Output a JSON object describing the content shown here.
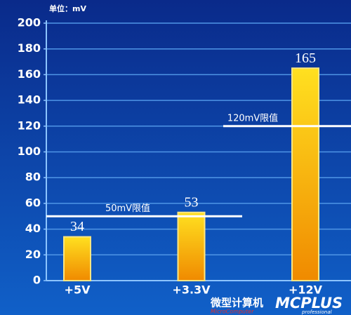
{
  "chart_data": {
    "type": "bar",
    "unit_label": "单位：mV",
    "categories": [
      "+5V",
      "+3.3V",
      "+12V"
    ],
    "values": [
      34,
      53,
      165
    ],
    "ylim": [
      0,
      200
    ],
    "yticks": [
      0,
      20,
      40,
      60,
      80,
      100,
      120,
      140,
      160,
      180,
      200
    ],
    "grid": true,
    "reference_lines": [
      {
        "value": 50,
        "label": "50mV限值"
      },
      {
        "value": 120,
        "label": "120mV限值"
      }
    ]
  },
  "watermark": {
    "title": "微型计算机",
    "subtitle": "MicroComputer",
    "brand": "MCPLUS",
    "tagline": "professional"
  }
}
